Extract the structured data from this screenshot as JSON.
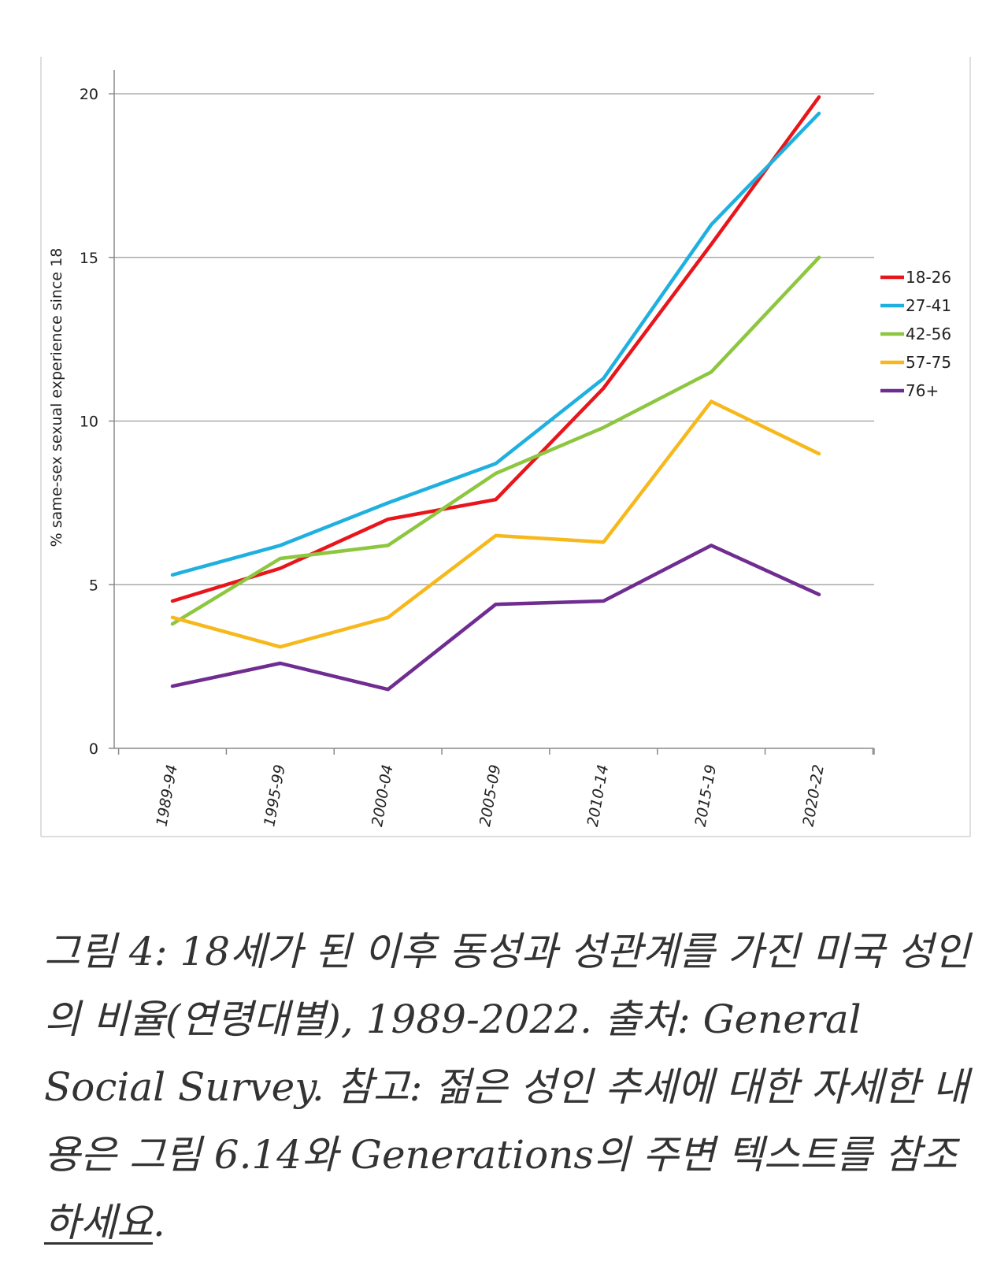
{
  "chart_data": {
    "type": "line",
    "title": "",
    "ylabel": "% same-sex sexual experience since 18",
    "xlabel": "",
    "categories": [
      "1989-94",
      "1995-99",
      "2000-04",
      "2005-09",
      "2010-14",
      "2015-19",
      "2020-22"
    ],
    "ylim": [
      0,
      20
    ],
    "yticks": [
      0,
      5,
      10,
      15,
      20
    ],
    "grid": true,
    "legend_position": "right",
    "series": [
      {
        "name": "18-26",
        "color": "#e8161b",
        "values": [
          4.5,
          5.5,
          7.0,
          7.6,
          11.0,
          15.4,
          19.9
        ]
      },
      {
        "name": "27-41",
        "color": "#1fb0e0",
        "values": [
          5.3,
          6.2,
          7.5,
          8.7,
          11.3,
          16.0,
          19.4
        ]
      },
      {
        "name": "42-56",
        "color": "#8dc63f",
        "values": [
          3.8,
          5.8,
          6.2,
          8.4,
          9.8,
          11.5,
          15.0
        ]
      },
      {
        "name": "57-75",
        "color": "#f7b81c",
        "values": [
          4.0,
          3.1,
          4.0,
          6.5,
          6.3,
          10.6,
          9.0
        ]
      },
      {
        "name": "76+",
        "color": "#6f2c91",
        "values": [
          1.9,
          2.6,
          1.8,
          4.4,
          4.5,
          6.2,
          4.7
        ]
      }
    ]
  },
  "caption": {
    "text_main": "그림 4: 18세가 된 이후 동성과 성관계를 가진 미국 성인의 비율(연령대별), 1989-2022. 출처: General Social Survey. 참고: 젊은 성인 추세에 대한 자세한 내용은 그림 6.14와 Generations의 주변 텍스트를 참조 ",
    "text_underlined": "하세요",
    "text_end": "."
  }
}
